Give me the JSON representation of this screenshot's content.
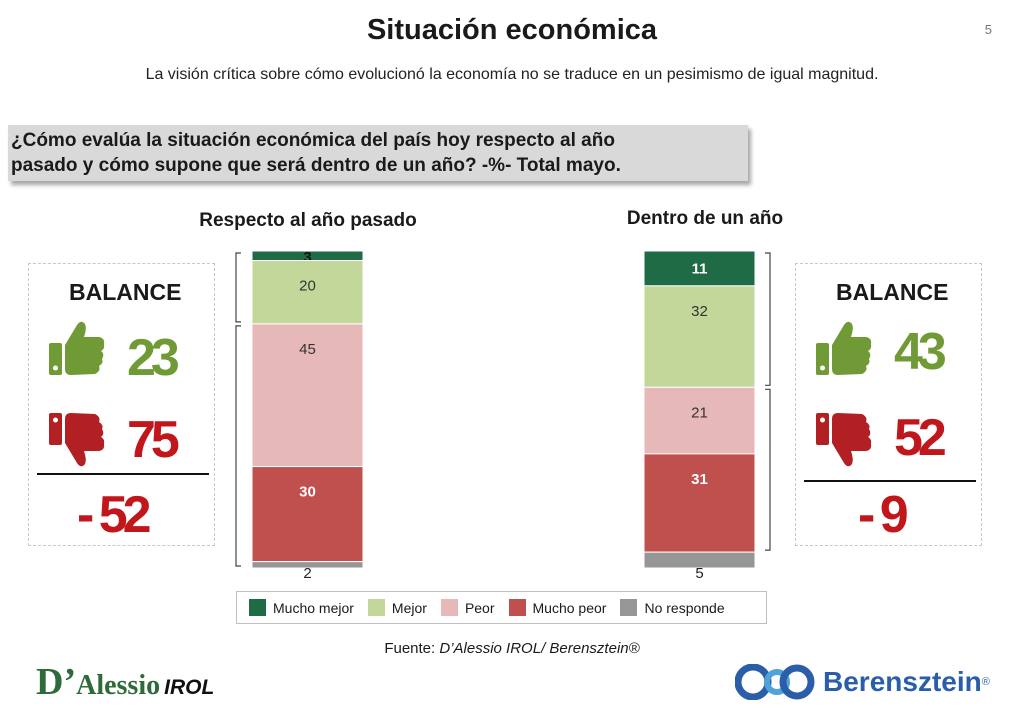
{
  "header": {
    "title": "Situación económica",
    "page_number": "5",
    "subtitle": "La visión crítica sobre cómo evolucionó la economía no se traduce en un pesimismo de igual magnitud."
  },
  "question": {
    "line1": "¿Cómo evalúa la situación económica del país hoy respecto al año",
    "line2": "pasado y cómo supone que será dentro de un año? -%- Total mayo."
  },
  "colors": {
    "mucho_mejor": "#1e6b45",
    "mejor": "#c4d79b",
    "peor": "#e6b9b8",
    "mucho_peor": "#c0504d",
    "no_responde": "#969696",
    "positive": "#6f9a35",
    "negative": "#c0161c"
  },
  "chart_data": [
    {
      "type": "bar",
      "stacked": true,
      "title": "Respecto al año pasado",
      "categories": [
        "Respecto al año pasado"
      ],
      "series": [
        {
          "name": "Mucho mejor",
          "values": [
            3
          ]
        },
        {
          "name": "Mejor",
          "values": [
            20
          ]
        },
        {
          "name": "Peor",
          "values": [
            45
          ]
        },
        {
          "name": "Mucho peor",
          "values": [
            30
          ]
        },
        {
          "name": "No responde",
          "values": [
            2
          ]
        }
      ],
      "ylim": [
        0,
        100
      ]
    },
    {
      "type": "bar",
      "stacked": true,
      "title": "Dentro de un año",
      "categories": [
        "Dentro de un año"
      ],
      "series": [
        {
          "name": "Mucho mejor",
          "values": [
            11
          ]
        },
        {
          "name": "Mejor",
          "values": [
            32
          ]
        },
        {
          "name": "Peor",
          "values": [
            21
          ]
        },
        {
          "name": "Mucho peor",
          "values": [
            31
          ]
        },
        {
          "name": "No responde",
          "values": [
            5
          ]
        }
      ],
      "ylim": [
        0,
        100
      ]
    }
  ],
  "left_balance": {
    "label": "BALANCE",
    "positive": "23",
    "negative": "75",
    "net": "- 52"
  },
  "right_balance": {
    "label": "BALANCE",
    "positive": "43",
    "negative": "52",
    "net": "- 9"
  },
  "legend": {
    "items": [
      "Mucho mejor",
      "Mejor",
      "Peor",
      "Mucho peor",
      "No responde"
    ]
  },
  "source": {
    "prefix": "Fuente: ",
    "text": "D’Alessio IROL/ Berensztein®"
  },
  "logos": {
    "left_d": "D’",
    "left_rest": "Alessio",
    "left_irol": "IROL",
    "right_name": "Berensztein",
    "right_reg": "®"
  }
}
